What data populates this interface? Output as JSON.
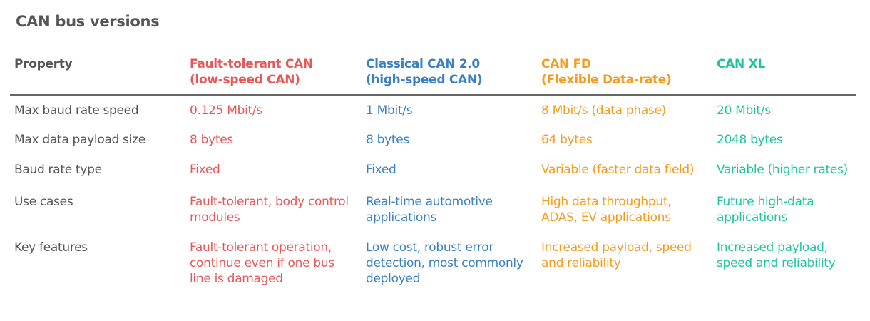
{
  "title": "CAN bus versions",
  "colors": {
    "text": "#555555",
    "fault_tolerant": "#e85757",
    "classical": "#3b80c2",
    "fd": "#f39c1f",
    "xl": "#1ec4a0"
  },
  "header": [
    "Property",
    "Fault-tolerant CAN\n(low-speed CAN)",
    "Classical CAN 2.0\n(high-speed CAN)",
    "CAN FD\n(Flexible Data-rate)",
    "CAN XL"
  ],
  "rows": [
    [
      "Max baud rate speed",
      "0.125 Mbit/s",
      "1 Mbit/s",
      "8 Mbit/s (data phase)",
      "20 Mbit/s"
    ],
    [
      "Max data payload size",
      "8 bytes",
      "8 bytes",
      "64 bytes",
      "2048 bytes"
    ],
    [
      "Baud rate type",
      "Fixed",
      "Fixed",
      "Variable (faster data field)",
      "Variable (higher rates)"
    ],
    [
      "Use cases",
      "Fault-tolerant, body control modules",
      "Real-time automotive applications",
      "High data throughput, ADAS, EV applications",
      "Future high-data applications"
    ],
    [
      "Key features",
      "Fault-tolerant operation, continue even if one bus line is damaged",
      "Low cost, robust error detection, most commonly deployed",
      "Increased payload, speed and reliability",
      "Increased payload, speed and reliability"
    ]
  ]
}
